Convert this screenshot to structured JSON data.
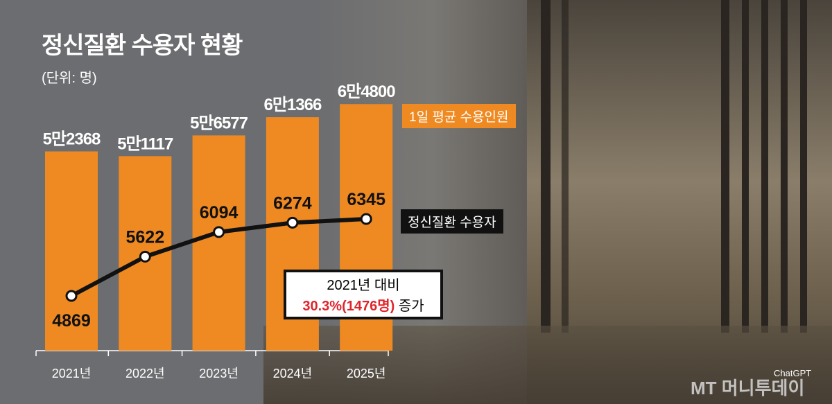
{
  "title": "정신질환 수용자 현황",
  "unit": "(단위: 명)",
  "legend": {
    "bars": "1일 평균 수용인원",
    "line": "정신질환 수용자"
  },
  "note": {
    "line1": "2021년 대비",
    "line2_red": "30.3%(1476명)",
    "line2_rest": " 증가"
  },
  "credit": "ChatGPT",
  "logo": "MT 머니투데이",
  "colors": {
    "bar": "#ef8a22",
    "line": "#111111",
    "highlight": "#e0242b",
    "background": "#6c6d70"
  },
  "chart_data": {
    "type": "bar+line",
    "title": "정신질환 수용자 현황",
    "categories": [
      "2021년",
      "2022년",
      "2023년",
      "2024년",
      "2025년"
    ],
    "series": [
      {
        "name": "1일 평균 수용인원",
        "type": "bar",
        "values": [
          52368,
          51117,
          56577,
          61366,
          64800
        ],
        "labels": [
          "5만2368",
          "5만1117",
          "5만6577",
          "6만1366",
          "6만4800"
        ]
      },
      {
        "name": "정신질환 수용자",
        "type": "line",
        "values": [
          4869,
          5622,
          6094,
          6274,
          6345
        ],
        "labels": [
          "4869",
          "5622",
          "6094",
          "6274",
          "6345"
        ]
      }
    ],
    "grid": false
  }
}
